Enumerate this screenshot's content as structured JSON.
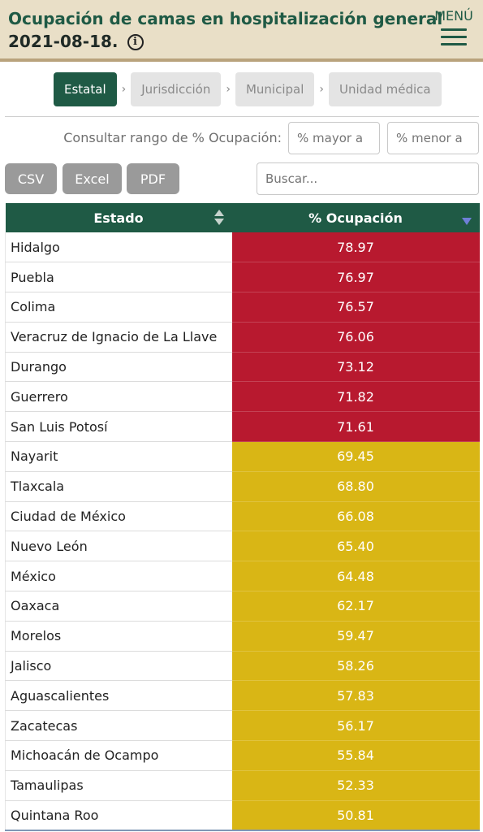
{
  "header": {
    "title": "Ocupación de camas en hospitalización general",
    "date": "2021-08-18.",
    "info_glyph": "i",
    "menu_label": "MENÚ"
  },
  "breadcrumbs": [
    {
      "label": "Estatal",
      "active": true
    },
    {
      "label": "Jurisdicción",
      "active": false
    },
    {
      "label": "Municipal",
      "active": false
    },
    {
      "label": "Unidad médica",
      "active": false
    }
  ],
  "breadcrumb_separator": "›",
  "filters": {
    "range_label": "Consultar rango de % Ocupación:",
    "min_placeholder": "% mayor a",
    "max_placeholder": "% menor a"
  },
  "export": {
    "csv": "CSV",
    "excel": "Excel",
    "pdf": "PDF"
  },
  "search": {
    "placeholder": "Buscar..."
  },
  "table": {
    "columns": {
      "estado": "Estado",
      "ocupacion": "% Ocupación"
    },
    "colors": {
      "high": "#b8192f",
      "medium": "#d9b615"
    },
    "rows": [
      {
        "estado": "Hidalgo",
        "ocupacion": "78.97",
        "level": "high"
      },
      {
        "estado": "Puebla",
        "ocupacion": "76.97",
        "level": "high"
      },
      {
        "estado": "Colima",
        "ocupacion": "76.57",
        "level": "high"
      },
      {
        "estado": "Veracruz de Ignacio de La Llave",
        "ocupacion": "76.06",
        "level": "high"
      },
      {
        "estado": "Durango",
        "ocupacion": "73.12",
        "level": "high"
      },
      {
        "estado": "Guerrero",
        "ocupacion": "71.82",
        "level": "high"
      },
      {
        "estado": "San Luis Potosí",
        "ocupacion": "71.61",
        "level": "high"
      },
      {
        "estado": "Nayarit",
        "ocupacion": "69.45",
        "level": "medium"
      },
      {
        "estado": "Tlaxcala",
        "ocupacion": "68.80",
        "level": "medium"
      },
      {
        "estado": "Ciudad de México",
        "ocupacion": "66.08",
        "level": "medium"
      },
      {
        "estado": "Nuevo León",
        "ocupacion": "65.40",
        "level": "medium"
      },
      {
        "estado": "México",
        "ocupacion": "64.48",
        "level": "medium"
      },
      {
        "estado": "Oaxaca",
        "ocupacion": "62.17",
        "level": "medium"
      },
      {
        "estado": "Morelos",
        "ocupacion": "59.47",
        "level": "medium"
      },
      {
        "estado": "Jalisco",
        "ocupacion": "58.26",
        "level": "medium"
      },
      {
        "estado": "Aguascalientes",
        "ocupacion": "57.83",
        "level": "medium"
      },
      {
        "estado": "Zacatecas",
        "ocupacion": "56.17",
        "level": "medium"
      },
      {
        "estado": "Michoacán de Ocampo",
        "ocupacion": "55.84",
        "level": "medium"
      },
      {
        "estado": "Tamaulipas",
        "ocupacion": "52.33",
        "level": "medium"
      },
      {
        "estado": "Quintana Roo",
        "ocupacion": "50.81",
        "level": "medium"
      }
    ]
  }
}
